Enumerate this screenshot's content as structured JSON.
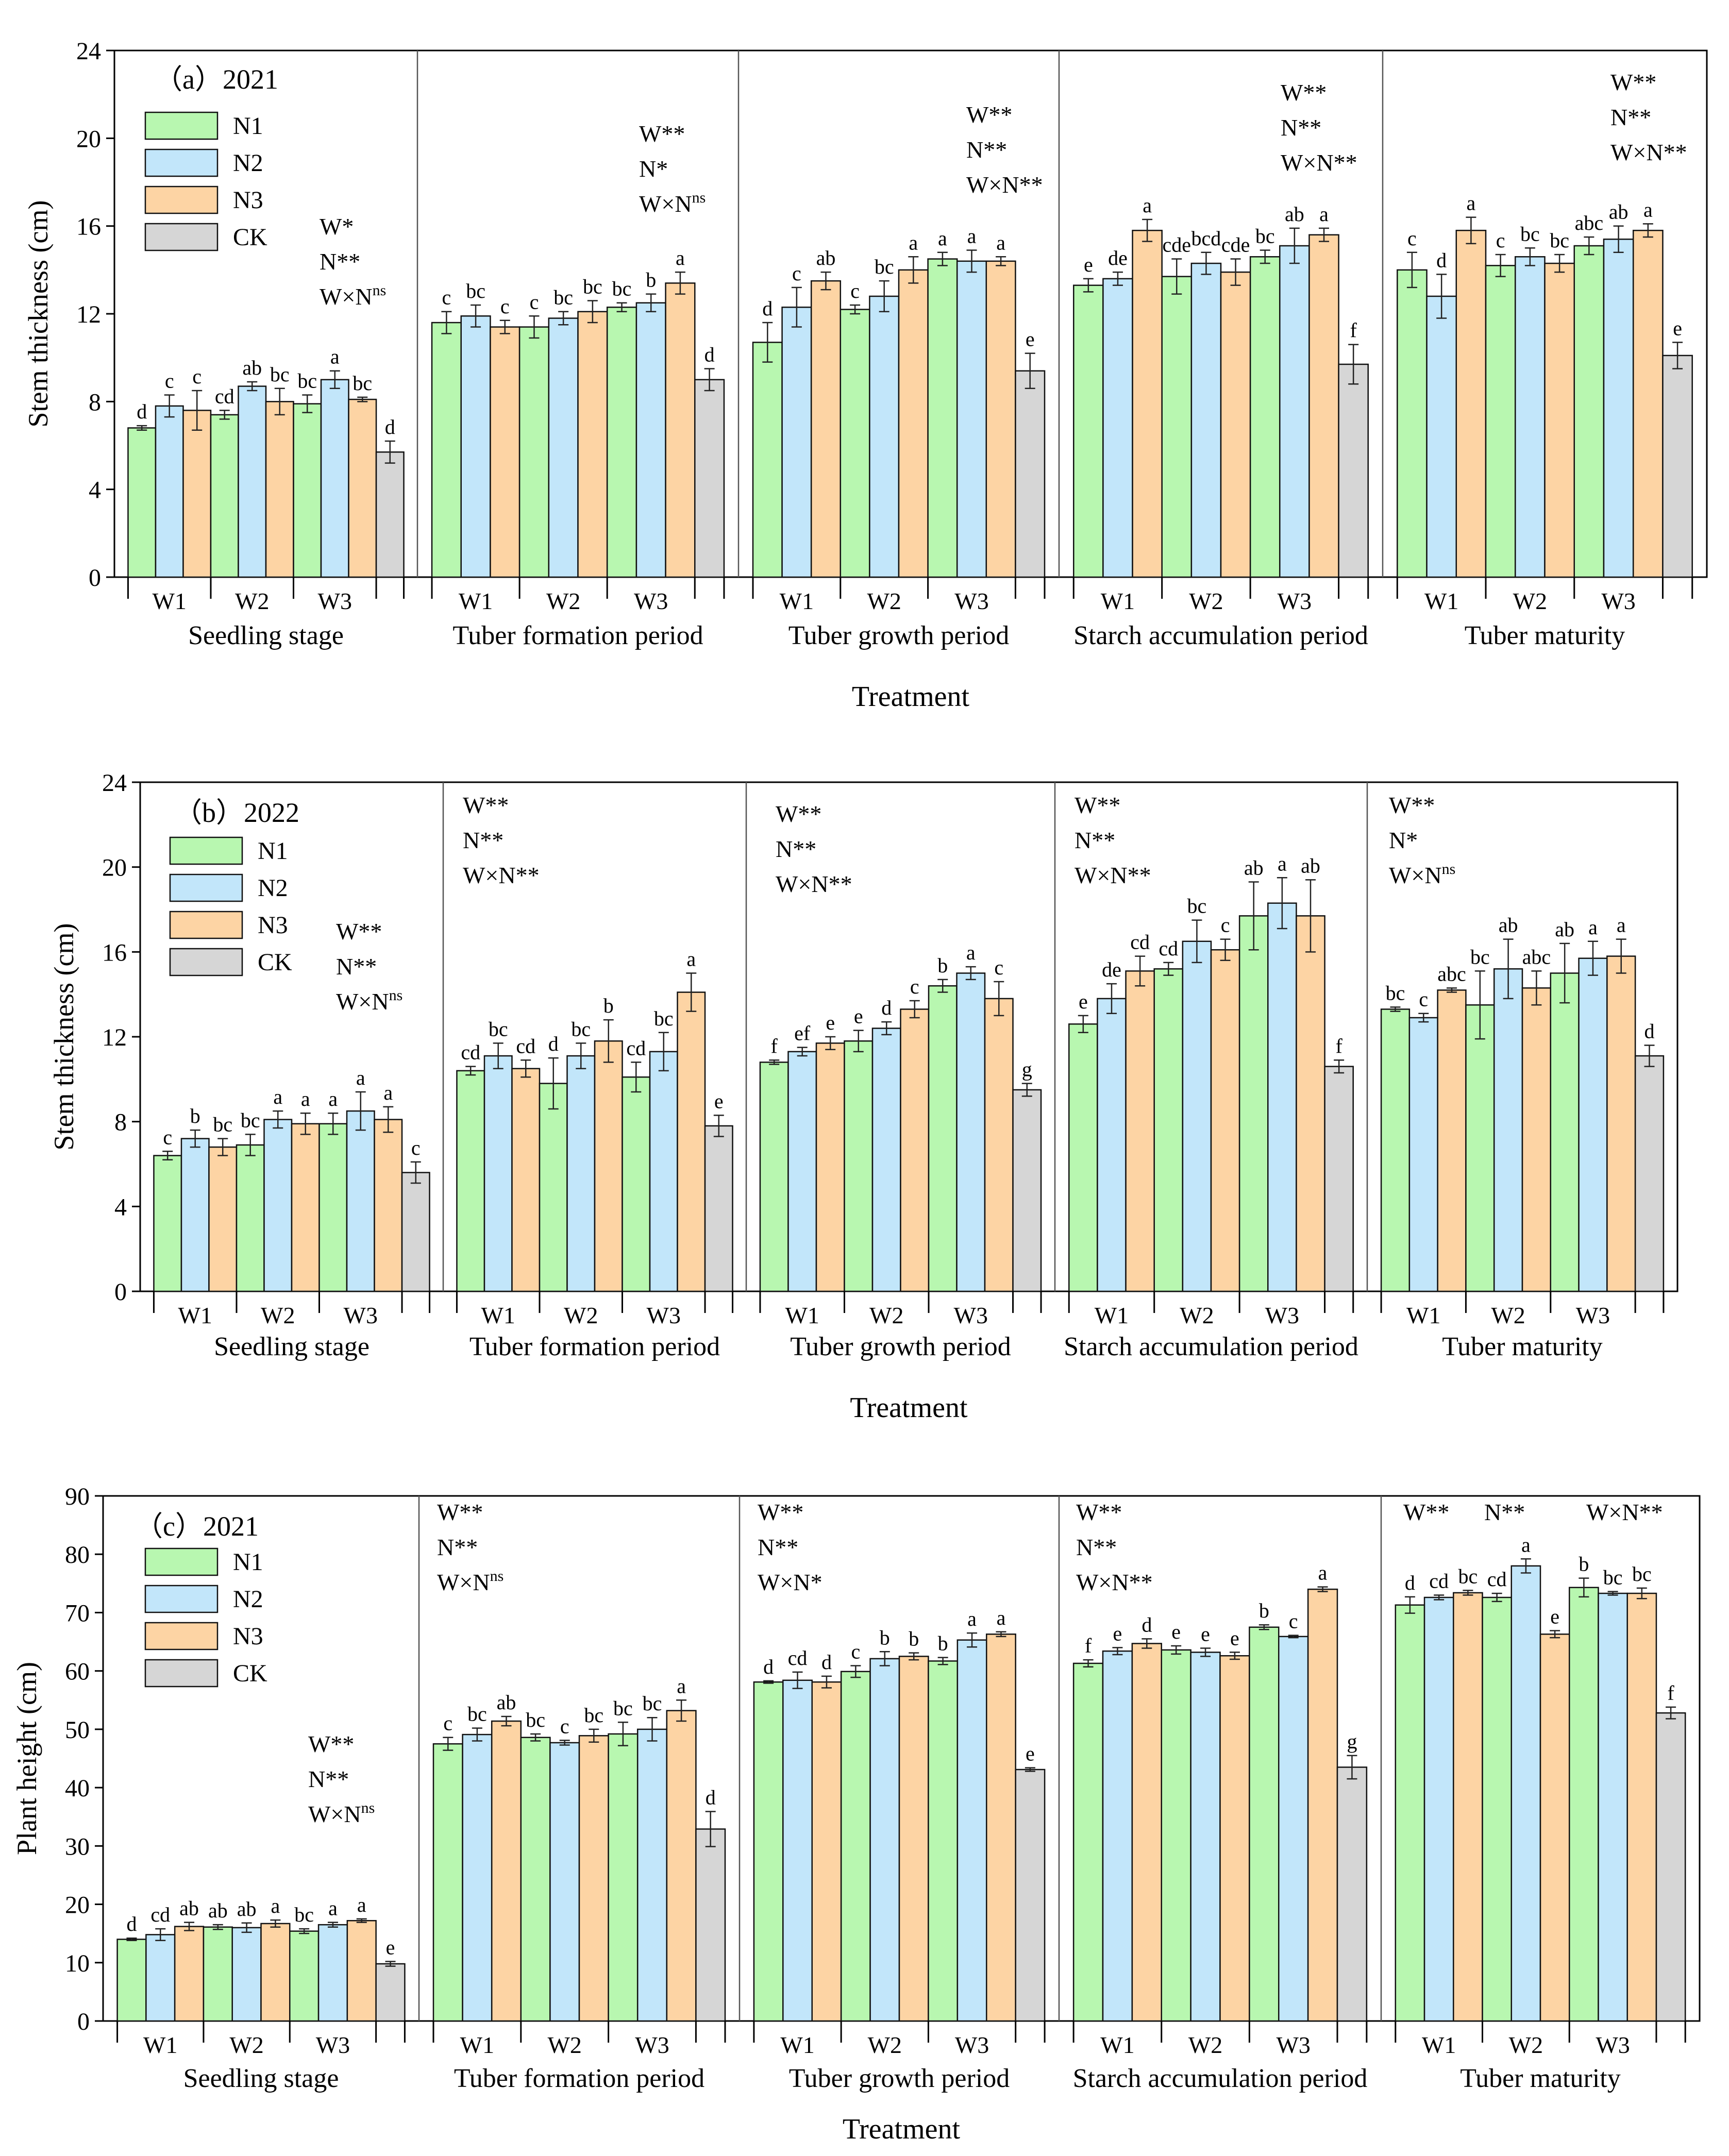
{
  "colors": {
    "N1": "#b8f7b0",
    "N2": "#c2e6fa",
    "N3": "#fdd4a4",
    "CK": "#d6d6d6",
    "axis": "#000000",
    "divider": "#555555"
  },
  "common": {
    "xlabel": "Treatment",
    "stages": [
      "Seedling stage",
      "Tuber formation period",
      "Tuber growth period",
      "Starch accumulation period",
      "Tuber maturity"
    ],
    "water_levels": [
      "W1",
      "W2",
      "W3"
    ],
    "legend": [
      "N1",
      "N2",
      "N3",
      "CK"
    ]
  },
  "chart_data": [
    {
      "type": "bar",
      "title": "（a）2021",
      "ylabel": "Stem thickness (cm)",
      "ylim": [
        0,
        24
      ],
      "yticks": [
        0,
        4,
        8,
        12,
        16,
        20,
        24
      ],
      "stages": [
        {
          "name": "Seedling stage",
          "values": [
            6.8,
            7.8,
            7.6,
            7.4,
            8.7,
            8.0,
            7.9,
            9.0,
            8.1,
            5.7
          ],
          "errors": [
            0.1,
            0.5,
            0.9,
            0.2,
            0.2,
            0.6,
            0.4,
            0.4,
            0.1,
            0.5
          ],
          "letters": [
            "d",
            "c",
            "c",
            "cd",
            "ab",
            "bc",
            "bc",
            "a",
            "bc",
            "d"
          ],
          "significance": [
            "W*",
            "N**",
            "W×N",
            "ns"
          ]
        },
        {
          "name": "Tuber formation period",
          "values": [
            11.6,
            11.9,
            11.4,
            11.4,
            11.8,
            12.1,
            12.3,
            12.5,
            13.4,
            9.0
          ],
          "errors": [
            0.5,
            0.5,
            0.3,
            0.5,
            0.3,
            0.5,
            0.2,
            0.4,
            0.5,
            0.5
          ],
          "letters": [
            "c",
            "bc",
            "c",
            "c",
            "bc",
            "bc",
            "bc",
            "b",
            "a",
            "d"
          ],
          "significance": [
            "W**",
            "N*",
            "W×N",
            "ns"
          ]
        },
        {
          "name": "Tuber growth period",
          "values": [
            10.7,
            12.3,
            13.5,
            12.2,
            12.8,
            14.0,
            14.5,
            14.4,
            14.4,
            9.4
          ],
          "errors": [
            0.9,
            0.9,
            0.4,
            0.2,
            0.7,
            0.6,
            0.3,
            0.5,
            0.2,
            0.8
          ],
          "letters": [
            "d",
            "c",
            "ab",
            "c",
            "bc",
            "a",
            "a",
            "a",
            "a",
            "e"
          ],
          "significance": [
            "W**",
            "N**",
            "W×N**",
            ""
          ]
        },
        {
          "name": "Starch accumulation period",
          "values": [
            13.3,
            13.6,
            15.8,
            13.7,
            14.3,
            13.9,
            14.6,
            15.1,
            15.6,
            9.7
          ],
          "errors": [
            0.3,
            0.3,
            0.5,
            0.8,
            0.5,
            0.6,
            0.3,
            0.8,
            0.3,
            0.9
          ],
          "letters": [
            "e",
            "de",
            "a",
            "cde",
            "bcd",
            "cde",
            "bc",
            "ab",
            "a",
            "f"
          ],
          "significance": [
            "W**",
            "N**",
            "W×N**",
            ""
          ]
        },
        {
          "name": "Tuber maturity",
          "values": [
            14.0,
            12.8,
            15.8,
            14.2,
            14.6,
            14.3,
            15.1,
            15.4,
            15.8,
            10.1
          ],
          "errors": [
            0.8,
            1.0,
            0.6,
            0.5,
            0.4,
            0.4,
            0.4,
            0.6,
            0.3,
            0.6
          ],
          "letters": [
            "c",
            "d",
            "a",
            "c",
            "bc",
            "bc",
            "abc",
            "ab",
            "a",
            "e"
          ],
          "significance": [
            "W**",
            "N**",
            "W×N**",
            ""
          ]
        }
      ]
    },
    {
      "type": "bar",
      "title": "（b）2022",
      "ylabel": "Stem thickness (cm)",
      "ylim": [
        0,
        24
      ],
      "yticks": [
        0,
        4,
        8,
        12,
        16,
        20,
        24
      ],
      "stages": [
        {
          "name": "Seedling stage",
          "values": [
            6.4,
            7.2,
            6.8,
            6.9,
            8.1,
            7.9,
            7.9,
            8.5,
            8.1,
            5.6
          ],
          "errors": [
            0.2,
            0.4,
            0.4,
            0.5,
            0.4,
            0.5,
            0.5,
            0.9,
            0.6,
            0.5
          ],
          "letters": [
            "c",
            "b",
            "bc",
            "bc",
            "a",
            "a",
            "a",
            "a",
            "a",
            "c"
          ],
          "significance": [
            "W**",
            "N**",
            "W×N",
            "ns"
          ]
        },
        {
          "name": "Tuber formation period",
          "values": [
            10.4,
            11.1,
            10.5,
            9.8,
            11.1,
            11.8,
            10.1,
            11.3,
            14.1,
            7.8
          ],
          "errors": [
            0.2,
            0.6,
            0.4,
            1.2,
            0.6,
            1.0,
            0.7,
            0.9,
            0.9,
            0.5
          ],
          "letters": [
            "cd",
            "bc",
            "cd",
            "d",
            "bc",
            "b",
            "cd",
            "bc",
            "a",
            "e"
          ],
          "significance": [
            "W**",
            "N**",
            "W×N**",
            ""
          ]
        },
        {
          "name": "Tuber growth period",
          "values": [
            10.8,
            11.3,
            11.7,
            11.8,
            12.4,
            13.3,
            14.4,
            15.0,
            13.8,
            9.5
          ],
          "errors": [
            0.1,
            0.2,
            0.3,
            0.5,
            0.3,
            0.4,
            0.3,
            0.3,
            0.8,
            0.3
          ],
          "letters": [
            "f",
            "ef",
            "e",
            "e",
            "d",
            "c",
            "b",
            "a",
            "c",
            "g"
          ],
          "significance": [
            "W**",
            "N**",
            "W×N**",
            ""
          ]
        },
        {
          "name": "Starch accumulation period",
          "values": [
            12.6,
            13.8,
            15.1,
            15.2,
            16.5,
            16.1,
            17.7,
            18.3,
            17.7,
            10.6
          ],
          "errors": [
            0.4,
            0.7,
            0.7,
            0.3,
            1.0,
            0.5,
            1.6,
            1.2,
            1.7,
            0.3
          ],
          "letters": [
            "e",
            "de",
            "cd",
            "cd",
            "bc",
            "c",
            "ab",
            "a",
            "ab",
            "f"
          ],
          "significance": [
            "W**",
            "N**",
            "W×N**",
            ""
          ]
        },
        {
          "name": "Tuber maturity",
          "values": [
            13.3,
            12.9,
            14.2,
            13.5,
            15.2,
            14.3,
            15.0,
            15.7,
            15.8,
            11.1
          ],
          "errors": [
            0.1,
            0.2,
            0.1,
            1.6,
            1.4,
            0.8,
            1.4,
            0.8,
            0.8,
            0.5
          ],
          "letters": [
            "bc",
            "c",
            "abc",
            "bc",
            "ab",
            "abc",
            "ab",
            "a",
            "a",
            "d"
          ],
          "significance": [
            "W**",
            "N*",
            "W×N",
            "ns"
          ]
        }
      ]
    },
    {
      "type": "bar",
      "title": "（c）2021",
      "ylabel": "Plant height (cm)",
      "ylim": [
        0,
        90
      ],
      "yticks": [
        0,
        10,
        20,
        30,
        40,
        50,
        60,
        70,
        80,
        90
      ],
      "stages": [
        {
          "name": "Seedling stage",
          "values": [
            14.0,
            14.8,
            16.2,
            16.1,
            16.0,
            16.7,
            15.4,
            16.5,
            17.2,
            9.8
          ],
          "errors": [
            0.2,
            1.0,
            0.7,
            0.4,
            0.8,
            0.6,
            0.4,
            0.4,
            0.3,
            0.4
          ],
          "letters": [
            "d",
            "cd",
            "ab",
            "ab",
            "ab",
            "a",
            "bc",
            "a",
            "a",
            "e"
          ],
          "significance": [
            "W**",
            "N**",
            "W×N",
            "ns"
          ]
        },
        {
          "name": "Tuber formation period",
          "values": [
            47.5,
            49.1,
            51.4,
            48.6,
            47.7,
            48.9,
            49.2,
            50.0,
            53.2,
            32.9
          ],
          "errors": [
            1.1,
            1.1,
            0.8,
            0.6,
            0.4,
            1.1,
            2.0,
            2.0,
            1.8,
            3.0
          ],
          "letters": [
            "c",
            "bc",
            "ab",
            "bc",
            "c",
            "bc",
            "bc",
            "bc",
            "a",
            "d"
          ],
          "significance": [
            "W**",
            "N**",
            "W×N",
            "ns"
          ]
        },
        {
          "name": "Tuber growth period",
          "values": [
            58.1,
            58.4,
            58.1,
            59.9,
            62.1,
            62.5,
            61.7,
            65.3,
            66.3,
            43.1
          ],
          "errors": [
            0.2,
            1.4,
            1.0,
            1.0,
            1.2,
            0.6,
            0.6,
            1.2,
            0.4,
            0.3
          ],
          "letters": [
            "d",
            "cd",
            "d",
            "c",
            "b",
            "b",
            "b",
            "a",
            "a",
            "e"
          ],
          "significance": [
            "W**",
            "N**",
            "W×N*",
            ""
          ]
        },
        {
          "name": "Starch accumulation period",
          "values": [
            61.3,
            63.4,
            64.7,
            63.6,
            63.2,
            62.6,
            67.5,
            65.9,
            74.0,
            43.5
          ],
          "errors": [
            0.6,
            0.6,
            0.8,
            0.7,
            0.7,
            0.6,
            0.4,
            0.2,
            0.4,
            2.0
          ],
          "letters": [
            "f",
            "e",
            "d",
            "e",
            "e",
            "e",
            "b",
            "c",
            "a",
            "g"
          ],
          "significance": [
            "W**",
            "N**",
            "W×N**",
            ""
          ]
        },
        {
          "name": "Tuber maturity",
          "values": [
            71.3,
            72.6,
            73.4,
            72.6,
            78.0,
            66.3,
            74.3,
            73.3,
            73.3,
            52.8
          ],
          "errors": [
            1.4,
            0.4,
            0.4,
            0.7,
            1.2,
            0.6,
            1.6,
            0.3,
            0.9,
            1.0
          ],
          "letters": [
            "d",
            "cd",
            "bc",
            "cd",
            "a",
            "e",
            "b",
            "bc",
            "bc",
            "f"
          ],
          "significance": [
            "W**",
            "N**",
            "W×N**",
            ""
          ]
        }
      ]
    }
  ]
}
